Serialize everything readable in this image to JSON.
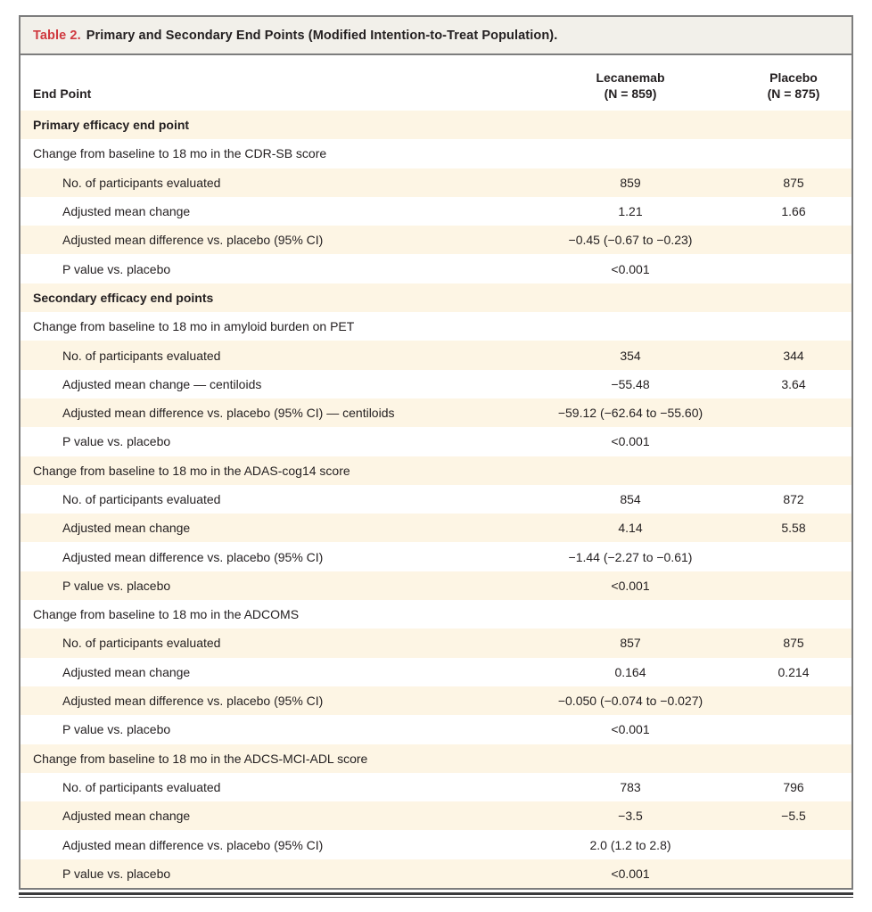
{
  "colors": {
    "accent": "#d0393f",
    "titlebar": "#f2f0ea",
    "stripe": "#fdf5e4",
    "frame": "#7d7d7d",
    "rule": "#3a3a3c",
    "text": "#231f20"
  },
  "table": {
    "label": "Table 2.",
    "title": "Primary and Secondary End Points (Modified Intention-to-Treat Population).",
    "columns": {
      "endpoint": "End Point",
      "lecanemab_name": "Lecanemab",
      "lecanemab_n": "(N = 859)",
      "placebo_name": "Placebo",
      "placebo_n": "(N = 875)"
    },
    "rows": [
      {
        "type": "section",
        "label": "Primary efficacy end point",
        "lec": "",
        "pla": ""
      },
      {
        "type": "group",
        "label": "Change from baseline to 18 mo in the CDR-SB score",
        "lec": "",
        "pla": ""
      },
      {
        "type": "sub",
        "label": "No. of participants evaluated",
        "lec": "859",
        "pla": "875"
      },
      {
        "type": "sub",
        "label": "Adjusted mean change",
        "lec": "1.21",
        "pla": "1.66"
      },
      {
        "type": "sub",
        "label": "Adjusted mean difference vs. placebo (95% CI)",
        "lec": "−0.45 (−0.67 to −0.23)",
        "pla": ""
      },
      {
        "type": "sub",
        "label": "P value vs. placebo",
        "lec": "<0.001",
        "pla": ""
      },
      {
        "type": "section",
        "label": "Secondary efficacy end points",
        "lec": "",
        "pla": ""
      },
      {
        "type": "group",
        "label": "Change from baseline to 18 mo in amyloid burden on PET",
        "lec": "",
        "pla": ""
      },
      {
        "type": "sub",
        "label": "No. of participants evaluated",
        "lec": "354",
        "pla": "344"
      },
      {
        "type": "sub",
        "label": "Adjusted mean change — centiloids",
        "lec": "−55.48",
        "pla": "3.64"
      },
      {
        "type": "sub",
        "label": "Adjusted mean difference vs. placebo (95% CI) — centiloids",
        "lec": "−59.12 (−62.64 to −55.60)",
        "pla": ""
      },
      {
        "type": "sub",
        "label": "P value vs. placebo",
        "lec": "<0.001",
        "pla": ""
      },
      {
        "type": "group",
        "label": "Change from baseline to 18 mo in the ADAS-cog14 score",
        "lec": "",
        "pla": ""
      },
      {
        "type": "sub",
        "label": "No. of participants evaluated",
        "lec": "854",
        "pla": "872"
      },
      {
        "type": "sub",
        "label": "Adjusted mean change",
        "lec": "4.14",
        "pla": "5.58"
      },
      {
        "type": "sub",
        "label": "Adjusted mean difference vs. placebo (95% CI)",
        "lec": "−1.44 (−2.27 to −0.61)",
        "pla": ""
      },
      {
        "type": "sub",
        "label": "P value vs. placebo",
        "lec": "<0.001",
        "pla": ""
      },
      {
        "type": "group",
        "label": "Change from baseline to 18 mo in the ADCOMS",
        "lec": "",
        "pla": ""
      },
      {
        "type": "sub",
        "label": "No. of participants evaluated",
        "lec": "857",
        "pla": "875"
      },
      {
        "type": "sub",
        "label": "Adjusted mean change",
        "lec": "0.164",
        "pla": "0.214"
      },
      {
        "type": "sub",
        "label": "Adjusted mean difference vs. placebo (95% CI)",
        "lec": "−0.050 (−0.074 to −0.027)",
        "pla": ""
      },
      {
        "type": "sub",
        "label": "P value vs. placebo",
        "lec": "<0.001",
        "pla": ""
      },
      {
        "type": "group",
        "label": "Change from baseline to 18 mo in the ADCS-MCI-ADL score",
        "lec": "",
        "pla": ""
      },
      {
        "type": "sub",
        "label": "No. of participants evaluated",
        "lec": "783",
        "pla": "796"
      },
      {
        "type": "sub",
        "label": "Adjusted mean change",
        "lec": "−3.5",
        "pla": "−5.5"
      },
      {
        "type": "sub",
        "label": "Adjusted mean difference vs. placebo (95% CI)",
        "lec": "2.0 (1.2 to 2.8)",
        "pla": ""
      },
      {
        "type": "sub",
        "label": "P value vs. placebo",
        "lec": "<0.001",
        "pla": ""
      }
    ]
  }
}
